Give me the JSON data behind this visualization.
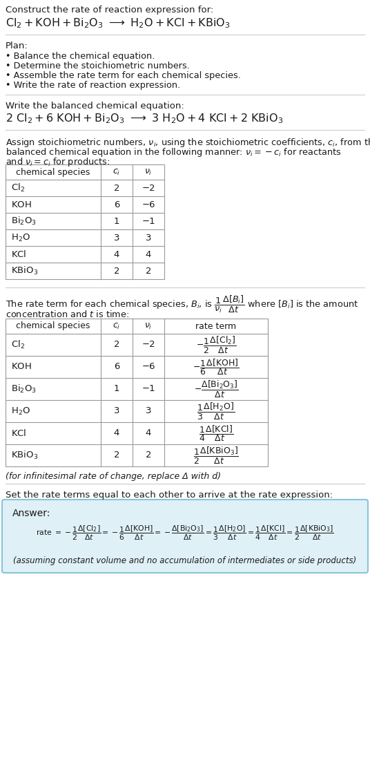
{
  "bg_color": "#ffffff",
  "title_line1": "Construct the rate of reaction expression for:",
  "plan_header": "Plan:",
  "plan_items": [
    "• Balance the chemical equation.",
    "• Determine the stoichiometric numbers.",
    "• Assemble the rate term for each chemical species.",
    "• Write the rate of reaction expression."
  ],
  "balanced_header": "Write the balanced chemical equation:",
  "table1_data": [
    [
      "Cl_2",
      "2",
      "−2"
    ],
    [
      "KOH",
      "6",
      "−6"
    ],
    [
      "Bi_2O_3",
      "1",
      "−1"
    ],
    [
      "H_2O",
      "3",
      "3"
    ],
    [
      "KCl",
      "4",
      "4"
    ],
    [
      "KBiO_3",
      "2",
      "2"
    ]
  ],
  "table2_data": [
    [
      "Cl_2",
      "2",
      "−2"
    ],
    [
      "KOH",
      "6",
      "−6"
    ],
    [
      "Bi_2O_3",
      "1",
      "−1"
    ],
    [
      "H_2O",
      "3",
      "3"
    ],
    [
      "KCl",
      "4",
      "4"
    ],
    [
      "KBiO_3",
      "2",
      "2"
    ]
  ],
  "infinitesimal_note": "(for infinitesimal rate of change, replace Δ with d)",
  "set_equal_text": "Set the rate terms equal to each other to arrive at the rate expression:",
  "answer_box_color": "#dff0f7",
  "answer_box_border": "#89c4d9",
  "answer_label": "Answer:",
  "answer_note": "(assuming constant volume and no accumulation of intermediates or side products)",
  "text_color": "#1a1a1a",
  "table_border_color": "#999999"
}
